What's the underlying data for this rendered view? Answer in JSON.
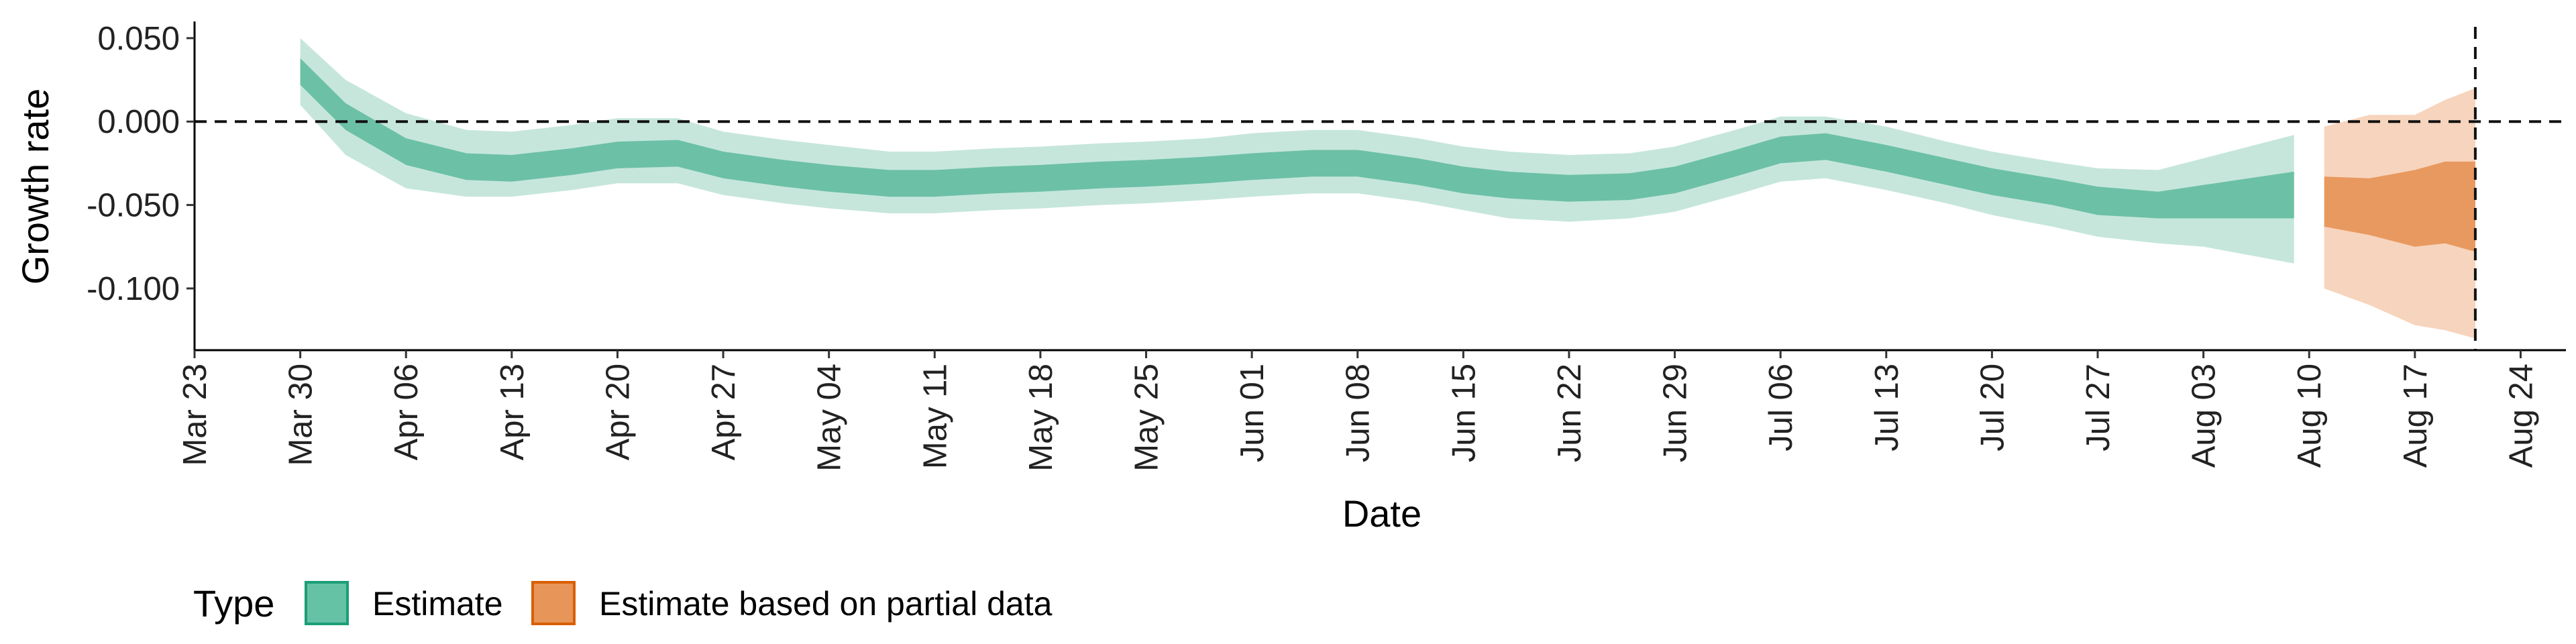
{
  "chart_data": {
    "type": "area",
    "xlabel": "Date",
    "ylabel": "Growth rate",
    "x_ticks": [
      "Mar 23",
      "Mar 30",
      "Apr 06",
      "Apr 13",
      "Apr 20",
      "Apr 27",
      "May 04",
      "May 11",
      "May 18",
      "May 25",
      "Jun 01",
      "Jun 08",
      "Jun 15",
      "Jun 22",
      "Jun 29",
      "Jul 06",
      "Jul 13",
      "Jul 20",
      "Jul 27",
      "Aug 03",
      "Aug 10",
      "Aug 17",
      "Aug 24"
    ],
    "y_ticks": [
      "0.050",
      "0.000",
      "-0.050",
      "-0.100"
    ],
    "y_tick_values": [
      0.05,
      0.0,
      -0.05,
      -0.1
    ],
    "xlim": [
      "2020-03-23",
      "2020-08-27"
    ],
    "ylim": [
      -0.137,
      0.06
    ],
    "reference_lines": {
      "horizontal_y": 0.0,
      "vertical_x": "2020-08-21"
    },
    "legend": {
      "title": "Type",
      "position": "bottom-left",
      "entries": [
        {
          "label": "Estimate",
          "color": "#66c2a5",
          "edge": "#1b9e77"
        },
        {
          "label": "Estimate based on partial data",
          "color": "#e8955a",
          "edge": "#d95f02"
        }
      ]
    },
    "colors": {
      "estimate_inner": "#6cc0a6",
      "estimate_outer": "#c6e6dc",
      "partial_inner": "#e8995f",
      "partial_outer": "#f7d4bd"
    },
    "series": [
      {
        "name": "Estimate",
        "dates": [
          "2020-03-30",
          "2020-04-02",
          "2020-04-06",
          "2020-04-10",
          "2020-04-13",
          "2020-04-17",
          "2020-04-20",
          "2020-04-24",
          "2020-04-27",
          "2020-05-01",
          "2020-05-04",
          "2020-05-08",
          "2020-05-11",
          "2020-05-15",
          "2020-05-18",
          "2020-05-22",
          "2020-05-25",
          "2020-05-29",
          "2020-06-01",
          "2020-06-05",
          "2020-06-08",
          "2020-06-12",
          "2020-06-15",
          "2020-06-18",
          "2020-06-22",
          "2020-06-26",
          "2020-06-29",
          "2020-07-03",
          "2020-07-06",
          "2020-07-09",
          "2020-07-13",
          "2020-07-17",
          "2020-07-20",
          "2020-07-24",
          "2020-07-27",
          "2020-07-31",
          "2020-08-03",
          "2020-08-06",
          "2020-08-09"
        ],
        "median": [
          0.03,
          0.003,
          -0.018,
          -0.027,
          -0.028,
          -0.024,
          -0.02,
          -0.019,
          -0.026,
          -0.031,
          -0.034,
          -0.037,
          -0.037,
          -0.035,
          -0.034,
          -0.032,
          -0.031,
          -0.029,
          -0.027,
          -0.025,
          -0.025,
          -0.03,
          -0.035,
          -0.038,
          -0.04,
          -0.039,
          -0.035,
          -0.025,
          -0.017,
          -0.015,
          -0.022,
          -0.03,
          -0.036,
          -0.042,
          -0.047,
          -0.05,
          -0.048,
          -0.046,
          -0.044
        ],
        "inner_lower": [
          0.022,
          -0.005,
          -0.026,
          -0.035,
          -0.036,
          -0.032,
          -0.028,
          -0.027,
          -0.034,
          -0.039,
          -0.042,
          -0.045,
          -0.045,
          -0.043,
          -0.042,
          -0.04,
          -0.039,
          -0.037,
          -0.035,
          -0.033,
          -0.033,
          -0.038,
          -0.043,
          -0.046,
          -0.048,
          -0.047,
          -0.043,
          -0.033,
          -0.025,
          -0.023,
          -0.03,
          -0.038,
          -0.044,
          -0.05,
          -0.056,
          -0.058,
          -0.058,
          -0.058,
          -0.058
        ],
        "inner_upper": [
          0.038,
          0.011,
          -0.01,
          -0.019,
          -0.02,
          -0.016,
          -0.012,
          -0.011,
          -0.018,
          -0.023,
          -0.026,
          -0.029,
          -0.029,
          -0.027,
          -0.026,
          -0.024,
          -0.023,
          -0.021,
          -0.019,
          -0.017,
          -0.017,
          -0.022,
          -0.027,
          -0.03,
          -0.032,
          -0.031,
          -0.027,
          -0.017,
          -0.009,
          -0.007,
          -0.014,
          -0.022,
          -0.028,
          -0.034,
          -0.039,
          -0.042,
          -0.038,
          -0.034,
          -0.03
        ],
        "outer_lower": [
          0.01,
          -0.02,
          -0.04,
          -0.045,
          -0.045,
          -0.041,
          -0.037,
          -0.037,
          -0.044,
          -0.049,
          -0.052,
          -0.055,
          -0.055,
          -0.053,
          -0.052,
          -0.05,
          -0.049,
          -0.047,
          -0.045,
          -0.043,
          -0.043,
          -0.048,
          -0.053,
          -0.058,
          -0.06,
          -0.058,
          -0.054,
          -0.044,
          -0.036,
          -0.034,
          -0.041,
          -0.049,
          -0.056,
          -0.063,
          -0.069,
          -0.073,
          -0.075,
          -0.08,
          -0.085
        ],
        "outer_upper": [
          0.05,
          0.025,
          0.005,
          -0.005,
          -0.006,
          -0.002,
          0.002,
          0.002,
          -0.006,
          -0.011,
          -0.014,
          -0.018,
          -0.018,
          -0.016,
          -0.015,
          -0.013,
          -0.012,
          -0.01,
          -0.007,
          -0.005,
          -0.005,
          -0.01,
          -0.015,
          -0.018,
          -0.02,
          -0.019,
          -0.015,
          -0.005,
          0.003,
          0.003,
          -0.003,
          -0.012,
          -0.018,
          -0.024,
          -0.028,
          -0.029,
          -0.022,
          -0.015,
          -0.008
        ]
      },
      {
        "name": "Estimate based on partial data",
        "dates": [
          "2020-08-11",
          "2020-08-14",
          "2020-08-17",
          "2020-08-19",
          "2020-08-21"
        ],
        "median": [
          -0.048,
          -0.05,
          -0.053,
          -0.054,
          -0.055
        ],
        "inner_lower": [
          -0.063,
          -0.068,
          -0.075,
          -0.073,
          -0.078
        ],
        "inner_upper": [
          -0.033,
          -0.034,
          -0.029,
          -0.024,
          -0.024
        ],
        "outer_lower": [
          -0.1,
          -0.11,
          -0.122,
          -0.125,
          -0.13
        ],
        "outer_upper": [
          -0.003,
          0.004,
          0.004,
          0.013,
          0.02
        ]
      }
    ]
  }
}
